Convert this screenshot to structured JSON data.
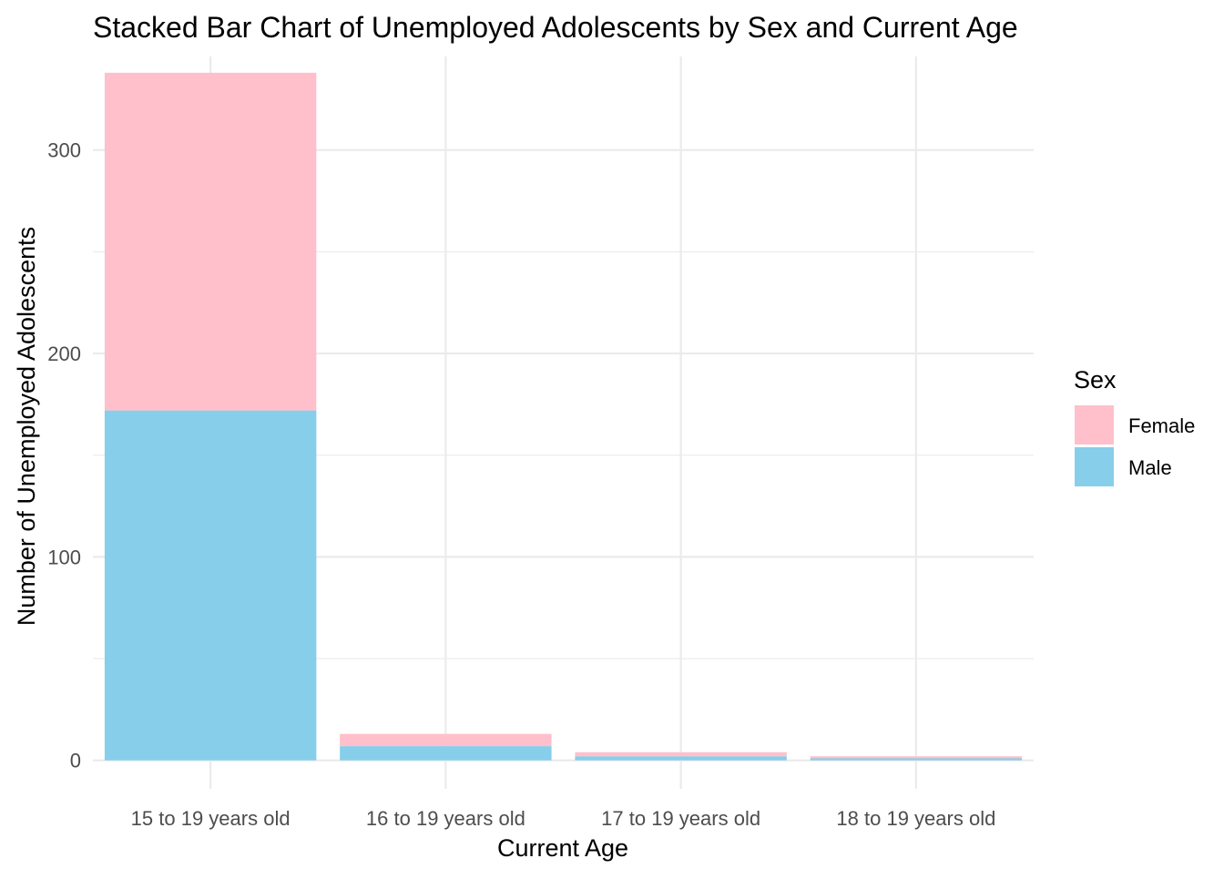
{
  "chart_data": {
    "type": "bar",
    "stacked": true,
    "title": "Stacked Bar Chart of Unemployed Adolescents by Sex and Current Age",
    "xlabel": "Current Age",
    "ylabel": "Number of Unemployed Adolescents",
    "categories": [
      "15 to 19 years old",
      "16 to 19 years old",
      "17 to 19 years old",
      "18 to 19 years old"
    ],
    "series": [
      {
        "name": "Male",
        "color": "#87CEEB",
        "values": [
          172,
          7,
          2,
          1
        ]
      },
      {
        "name": "Female",
        "color": "#FFC0CB",
        "values": [
          166,
          6,
          2,
          1
        ]
      }
    ],
    "ylim": [
      -14,
      346
    ],
    "yticks": [
      0,
      100,
      200,
      300
    ],
    "ytick_labels": [
      "0",
      "100",
      "200",
      "300"
    ],
    "grid": true,
    "legend": {
      "title": "Sex",
      "placement": "right",
      "entries": [
        {
          "label": "Female",
          "color": "#FFC0CB"
        },
        {
          "label": "Male",
          "color": "#87CEEB"
        }
      ]
    }
  }
}
